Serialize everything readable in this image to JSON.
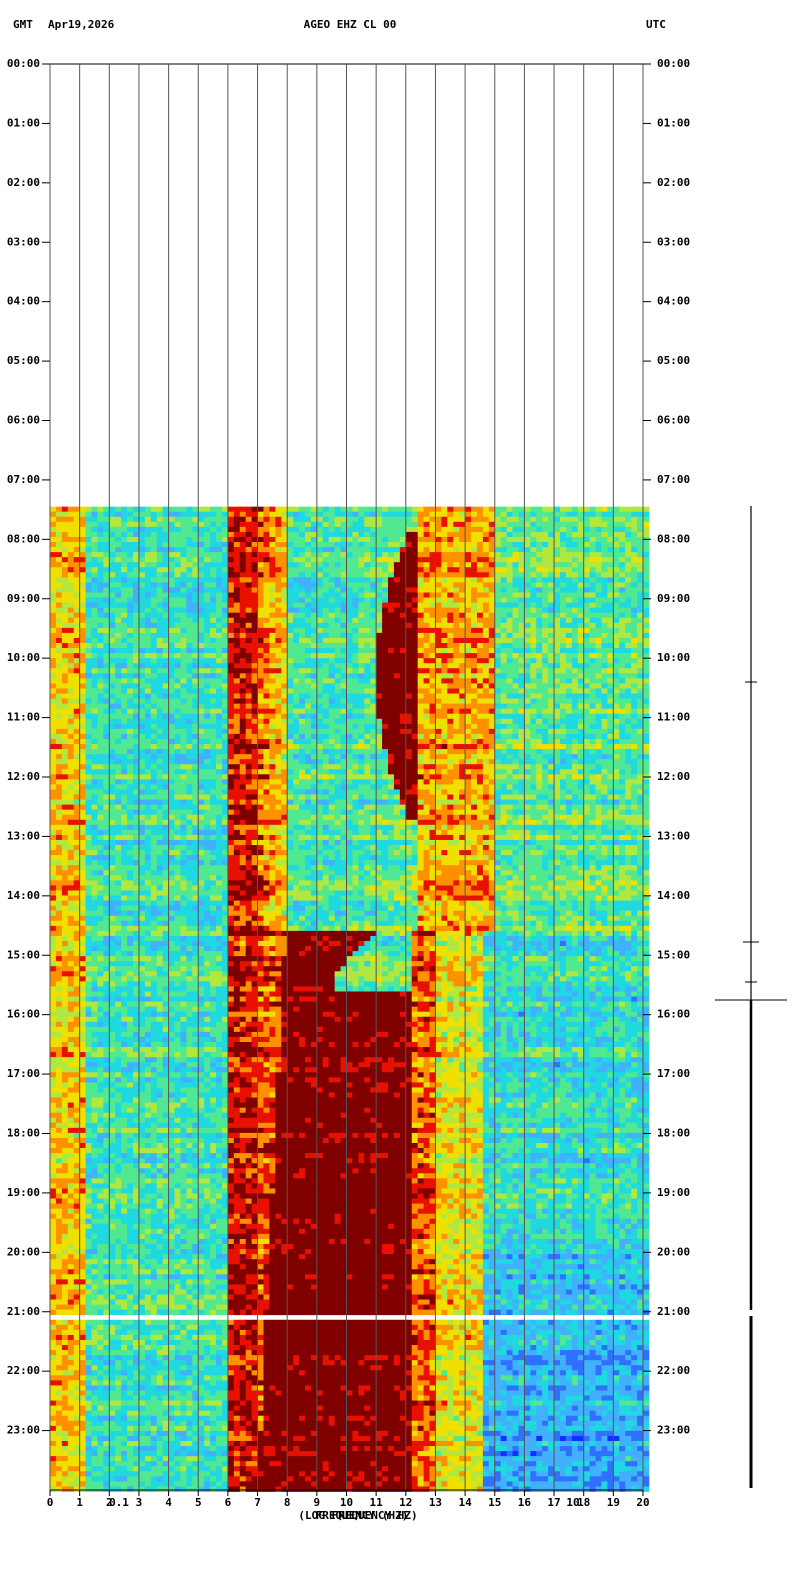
{
  "chart_data": {
    "type": "spectrogram",
    "header": {
      "left": "GMT",
      "date": "Apr19,2026",
      "station": "AGEO EHZ CL 00",
      "right": "UTC"
    },
    "x_label": "(LOG FREQUENCY HZ)",
    "x_label_2": "FREQUENCY (HZ)",
    "annotations": [
      "0.1",
      "10"
    ],
    "xlim": [
      0,
      20
    ],
    "xticks": [
      0,
      1,
      2,
      3,
      4,
      5,
      6,
      7,
      8,
      9,
      10,
      11,
      12,
      13,
      14,
      15,
      16,
      17,
      18,
      19,
      20
    ],
    "ylim": [
      0,
      24
    ],
    "yticks": [
      {
        "value": 0,
        "label": "00:00"
      },
      {
        "value": 1,
        "label": "01:00"
      },
      {
        "value": 2,
        "label": "02:00"
      },
      {
        "value": 3,
        "label": "03:00"
      },
      {
        "value": 4,
        "label": "04:00"
      },
      {
        "value": 5,
        "label": "05:00"
      },
      {
        "value": 6,
        "label": "06:00"
      },
      {
        "value": 7,
        "label": "07:00"
      },
      {
        "value": 8,
        "label": "08:00"
      },
      {
        "value": 9,
        "label": "09:00"
      },
      {
        "value": 10,
        "label": "10:00"
      },
      {
        "value": 11,
        "label": "11:00"
      },
      {
        "value": 12,
        "label": "12:00"
      },
      {
        "value": 13,
        "label": "13:00"
      },
      {
        "value": 14,
        "label": "14:00"
      },
      {
        "value": 15,
        "label": "15:00"
      },
      {
        "value": 16,
        "label": "16:00"
      },
      {
        "value": 17,
        "label": "17:00"
      },
      {
        "value": 18,
        "label": "18:00"
      },
      {
        "value": 19,
        "label": "19:00"
      },
      {
        "value": 20,
        "label": "20:00"
      },
      {
        "value": 21,
        "label": "21:00"
      },
      {
        "value": 22,
        "label": "22:00"
      },
      {
        "value": 23,
        "label": "23:00"
      }
    ],
    "grid": true
  }
}
